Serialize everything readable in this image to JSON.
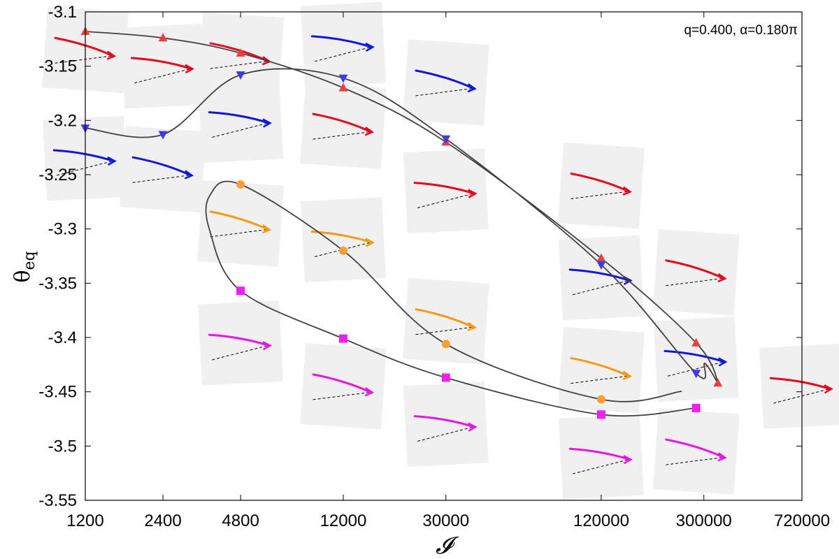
{
  "chart_data": {
    "type": "line",
    "title": "",
    "annotation": "q=0.400, α=0.180π",
    "xlabel": "𝓘",
    "ylabel": "θ",
    "ylabel_subscript": "eq",
    "xscale": "log",
    "xlim": [
      1200,
      720000
    ],
    "ylim": [
      -3.55,
      -3.1
    ],
    "xticks": [
      1200,
      2400,
      4800,
      12000,
      30000,
      120000,
      300000,
      720000
    ],
    "xtick_labels": [
      "1200",
      "2400",
      "4800",
      "12000",
      "30000",
      "120000",
      "300000",
      "720000"
    ],
    "yticks": [
      -3.1,
      -3.15,
      -3.2,
      -3.25,
      -3.3,
      -3.35,
      -3.4,
      -3.45,
      -3.5,
      -3.55
    ],
    "ytick_labels": [
      "-3.1",
      "-3.15",
      "-3.2",
      "-3.25",
      "-3.3",
      "-3.35",
      "-3.4",
      "-3.45",
      "-3.5",
      "-3.55"
    ],
    "grid": false,
    "series": [
      {
        "color": "#e8403c",
        "marker": "triangle-up",
        "x": [
          1200,
          2400,
          4800,
          12000,
          30000,
          120000,
          280000,
          340000
        ],
        "y": [
          -3.118,
          -3.124,
          -3.138,
          -3.17,
          -3.22,
          -3.327,
          -3.405,
          -3.442
        ]
      },
      {
        "color": "#3c3ce0",
        "marker": "triangle-down",
        "x": [
          1200,
          2400,
          4800,
          12000,
          30000,
          120000,
          280000
        ],
        "y": [
          -3.207,
          -3.213,
          -3.158,
          -3.161,
          -3.217,
          -3.333,
          -3.433
        ]
      },
      {
        "color": "#f5a031",
        "marker": "circle",
        "x": [
          4800,
          12000,
          30000,
          120000
        ],
        "y": [
          -3.259,
          -3.32,
          -3.406,
          -3.457
        ]
      },
      {
        "color": "#ee20ee",
        "marker": "square",
        "x": [
          4800,
          12000,
          30000,
          120000,
          280000
        ],
        "y": [
          -3.357,
          -3.401,
          -3.437,
          -3.471,
          -3.465
        ]
      }
    ],
    "insets": [
      {
        "x": 1200,
        "y": -3.135,
        "color": "#e8001c"
      },
      {
        "x": 2400,
        "y": -3.15,
        "color": "#e8001c"
      },
      {
        "x": 4800,
        "y": -3.14,
        "color": "#e8001c"
      },
      {
        "x": 12000,
        "y": -3.13,
        "color": "#1414e0"
      },
      {
        "x": 30000,
        "y": -3.165,
        "color": "#1414e0"
      },
      {
        "x": 1200,
        "y": -3.235,
        "color": "#1414e0"
      },
      {
        "x": 2400,
        "y": -3.245,
        "color": "#1414e0"
      },
      {
        "x": 4800,
        "y": -3.2,
        "color": "#1414e0"
      },
      {
        "x": 12000,
        "y": -3.205,
        "color": "#e8001c"
      },
      {
        "x": 30000,
        "y": -3.265,
        "color": "#e8001c"
      },
      {
        "x": 4800,
        "y": -3.295,
        "color": "#f59a0c"
      },
      {
        "x": 12000,
        "y": -3.31,
        "color": "#f59a0c"
      },
      {
        "x": 30000,
        "y": -3.385,
        "color": "#f59a0c"
      },
      {
        "x": 4800,
        "y": -3.405,
        "color": "#e814e8"
      },
      {
        "x": 12000,
        "y": -3.445,
        "color": "#e814e8"
      },
      {
        "x": 30000,
        "y": -3.48,
        "color": "#e814e8"
      },
      {
        "x": 120000,
        "y": -3.26,
        "color": "#e8001c"
      },
      {
        "x": 120000,
        "y": -3.345,
        "color": "#1414e0"
      },
      {
        "x": 120000,
        "y": -3.43,
        "color": "#f59a0c"
      },
      {
        "x": 120000,
        "y": -3.51,
        "color": "#e814e8"
      },
      {
        "x": 280000,
        "y": -3.34,
        "color": "#e8001c"
      },
      {
        "x": 280000,
        "y": -3.42,
        "color": "#1414e0"
      },
      {
        "x": 280000,
        "y": -3.505,
        "color": "#e814e8"
      },
      {
        "x": 720000,
        "y": -3.445,
        "color": "#e8001c"
      }
    ]
  }
}
